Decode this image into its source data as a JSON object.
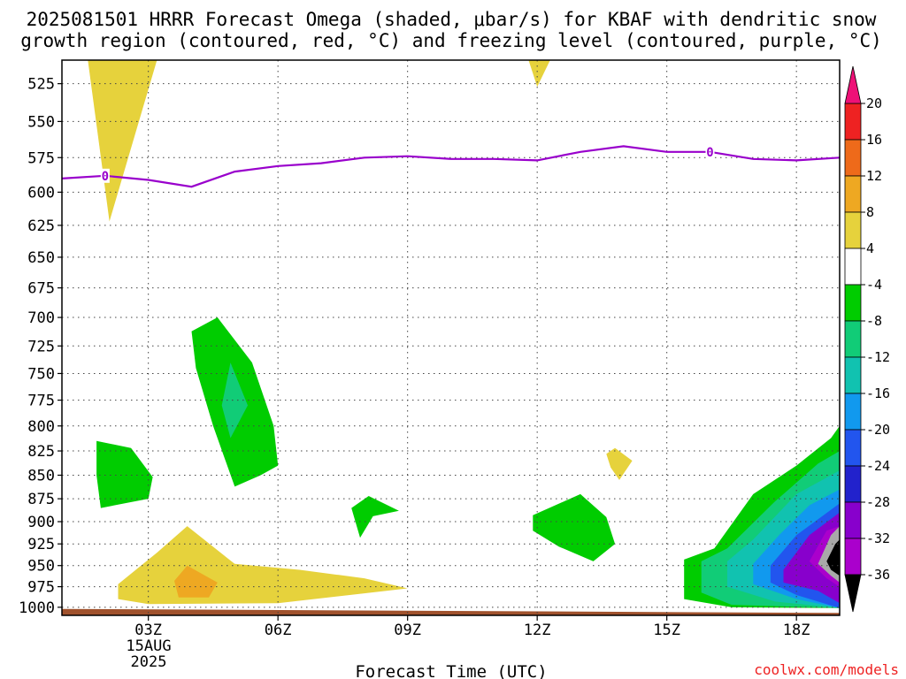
{
  "title_line1": "2025081501 HRRR Forecast Omega (shaded, μbar/s) for KBAF with dendritic snow",
  "title_line2": "growth region (contoured, red, °C) and freezing level (contoured, purple, °C)",
  "xlabel": "Forecast Time (UTC)",
  "credit": "coolwx.com/models",
  "date_label": [
    "15AUG",
    "2025"
  ],
  "chart_data": {
    "type": "heatmap",
    "station": "KBAF",
    "run": "2025081501",
    "x_unit": "hour (UTC) on 15AUG2025",
    "x_range": [
      1,
      19
    ],
    "y_unit": "hPa",
    "y_range": [
      510,
      1010
    ],
    "y_scale": "log",
    "y_ticks": [
      525,
      550,
      575,
      600,
      625,
      650,
      675,
      700,
      725,
      750,
      775,
      800,
      825,
      850,
      875,
      900,
      925,
      950,
      975,
      1000
    ],
    "x_ticks": [
      {
        "x": 3,
        "label": "03Z"
      },
      {
        "x": 6,
        "label": "06Z"
      },
      {
        "x": 9,
        "label": "09Z"
      },
      {
        "x": 12,
        "label": "12Z"
      },
      {
        "x": 15,
        "label": "15Z"
      },
      {
        "x": 18,
        "label": "18Z"
      }
    ],
    "grid": true,
    "colorbar": {
      "levels": [
        20,
        16,
        12,
        8,
        4,
        -4,
        -8,
        -12,
        -16,
        -20,
        -24,
        -28,
        -32,
        -36
      ],
      "colors": [
        "#ff3366",
        "#ee2222",
        "#ee6a1a",
        "#eea822",
        "#e6d23c",
        "#ffffff",
        "#00cc00",
        "#11cc77",
        "#11c2b0",
        "#1199ee",
        "#2255ee",
        "#2222cc",
        "#8800cc",
        "#aa00cc",
        "#a9a9a9",
        "#000000"
      ],
      "top_arrow_color": "#ee1177",
      "bottom_arrow_color": "#000000"
    },
    "freezing_level_0C": {
      "label": "0",
      "color": "#9900cc",
      "points": [
        [
          1,
          590
        ],
        [
          2,
          588
        ],
        [
          3,
          591
        ],
        [
          4,
          596
        ],
        [
          5,
          585
        ],
        [
          6,
          581
        ],
        [
          7,
          579
        ],
        [
          8,
          575
        ],
        [
          9,
          574
        ],
        [
          10,
          576
        ],
        [
          11,
          576
        ],
        [
          12,
          577
        ],
        [
          13,
          571
        ],
        [
          14,
          567
        ],
        [
          15,
          571
        ],
        [
          16,
          571
        ],
        [
          17,
          576
        ],
        [
          18,
          577
        ],
        [
          19,
          575
        ]
      ],
      "label_at": [
        [
          2,
          588
        ],
        [
          16,
          571
        ]
      ]
    },
    "omega_regions": [
      {
        "level": "4 to 8",
        "points": [
          [
            1.6,
            510
          ],
          [
            2.1,
            622
          ],
          [
            3.2,
            510
          ]
        ]
      },
      {
        "level": "4 to 8",
        "points": [
          [
            11.8,
            510
          ],
          [
            12.0,
            527
          ],
          [
            12.3,
            510
          ]
        ]
      },
      {
        "level": "-8 to -4",
        "points": [
          [
            4.0,
            712
          ],
          [
            4.6,
            700
          ],
          [
            5.4,
            740
          ],
          [
            5.9,
            800
          ],
          [
            6.0,
            840
          ],
          [
            5.6,
            850
          ],
          [
            5.0,
            862
          ],
          [
            4.5,
            800
          ],
          [
            4.1,
            745
          ]
        ]
      },
      {
        "level": "-12 to -8",
        "points": [
          [
            4.9,
            740
          ],
          [
            5.3,
            780
          ],
          [
            4.9,
            812
          ],
          [
            4.7,
            780
          ]
        ]
      },
      {
        "level": "-8 to -4",
        "points": [
          [
            1.8,
            815
          ],
          [
            2.6,
            822
          ],
          [
            3.1,
            852
          ],
          [
            3.0,
            875
          ],
          [
            1.9,
            885
          ],
          [
            1.8,
            850
          ]
        ]
      },
      {
        "level": "-8 to -4",
        "points": [
          [
            7.7,
            885
          ],
          [
            8.1,
            872
          ],
          [
            8.8,
            888
          ],
          [
            8.2,
            894
          ],
          [
            7.9,
            918
          ]
        ]
      },
      {
        "level": "4 to 8",
        "points": [
          [
            13.6,
            828
          ],
          [
            13.8,
            822
          ],
          [
            14.2,
            835
          ],
          [
            13.9,
            855
          ],
          [
            13.7,
            842
          ]
        ]
      },
      {
        "level": "-8 to -4",
        "points": [
          [
            11.9,
            893
          ],
          [
            13.0,
            870
          ],
          [
            13.6,
            895
          ],
          [
            13.8,
            925
          ],
          [
            13.3,
            945
          ],
          [
            12.5,
            928
          ],
          [
            11.9,
            910
          ]
        ]
      },
      {
        "level": "4 to 8",
        "points": [
          [
            2.3,
            972
          ],
          [
            3.2,
            935
          ],
          [
            3.9,
            905
          ],
          [
            5.0,
            948
          ],
          [
            6.5,
            955
          ],
          [
            8.0,
            965
          ],
          [
            9.0,
            977
          ],
          [
            8.0,
            983
          ],
          [
            6.0,
            995
          ],
          [
            3.0,
            996
          ],
          [
            2.3,
            990
          ]
        ]
      },
      {
        "level": "8 to 12",
        "points": [
          [
            3.6,
            968
          ],
          [
            3.9,
            950
          ],
          [
            4.6,
            970
          ],
          [
            4.4,
            988
          ],
          [
            3.7,
            988
          ]
        ]
      }
    ],
    "omega_downward_region": [
      {
        "level": "-8 to -4",
        "points": [
          [
            15.4,
            943
          ],
          [
            16.1,
            930
          ],
          [
            17.0,
            870
          ],
          [
            18.0,
            840
          ],
          [
            18.8,
            812
          ],
          [
            19,
            800
          ],
          [
            19,
            1001
          ],
          [
            16.5,
            1000
          ],
          [
            15.4,
            990
          ]
        ]
      },
      {
        "level": "-12 to -8",
        "points": [
          [
            15.8,
            945
          ],
          [
            16.4,
            930
          ],
          [
            17.5,
            878
          ],
          [
            18.5,
            838
          ],
          [
            19,
            825
          ],
          [
            19,
            1001
          ],
          [
            16.5,
            997
          ],
          [
            15.8,
            982
          ]
        ]
      },
      {
        "level": "-16 to -12",
        "points": [
          [
            16.4,
            945
          ],
          [
            17.0,
            920
          ],
          [
            18.0,
            870
          ],
          [
            19,
            845
          ],
          [
            19,
            1001
          ],
          [
            17.5,
            993
          ],
          [
            16.4,
            975
          ]
        ]
      },
      {
        "level": "-20 to -16",
        "points": [
          [
            17.0,
            948
          ],
          [
            17.6,
            915
          ],
          [
            18.3,
            882
          ],
          [
            19,
            865
          ],
          [
            19,
            1001
          ],
          [
            18.0,
            990
          ],
          [
            17.0,
            972
          ]
        ]
      },
      {
        "level": "-24 to -20",
        "points": [
          [
            17.4,
            950
          ],
          [
            18.0,
            915
          ],
          [
            19,
            880
          ],
          [
            19,
            1001
          ],
          [
            18.0,
            985
          ],
          [
            17.4,
            970
          ]
        ]
      },
      {
        "level": "-28 to -24",
        "points": [
          [
            17.7,
            955
          ],
          [
            18.3,
            915
          ],
          [
            19,
            890
          ],
          [
            19,
            995
          ],
          [
            18.5,
            980
          ],
          [
            17.7,
            970
          ]
        ]
      },
      {
        "level": "-32 to -28",
        "points": [
          [
            18.3,
            945
          ],
          [
            18.7,
            910
          ],
          [
            19,
            905
          ],
          [
            19,
            975
          ],
          [
            18.7,
            965
          ]
        ]
      },
      {
        "level": "< -36",
        "points": [
          [
            18.7,
            945
          ],
          [
            18.9,
            925
          ],
          [
            19,
            920
          ],
          [
            19,
            962
          ],
          [
            18.8,
            955
          ]
        ]
      }
    ],
    "surface_fill": {
      "color": "#a0522d",
      "points": [
        [
          1,
          1002
        ],
        [
          19,
          1007
        ],
        [
          19,
          1012
        ],
        [
          1,
          1012
        ]
      ]
    }
  }
}
